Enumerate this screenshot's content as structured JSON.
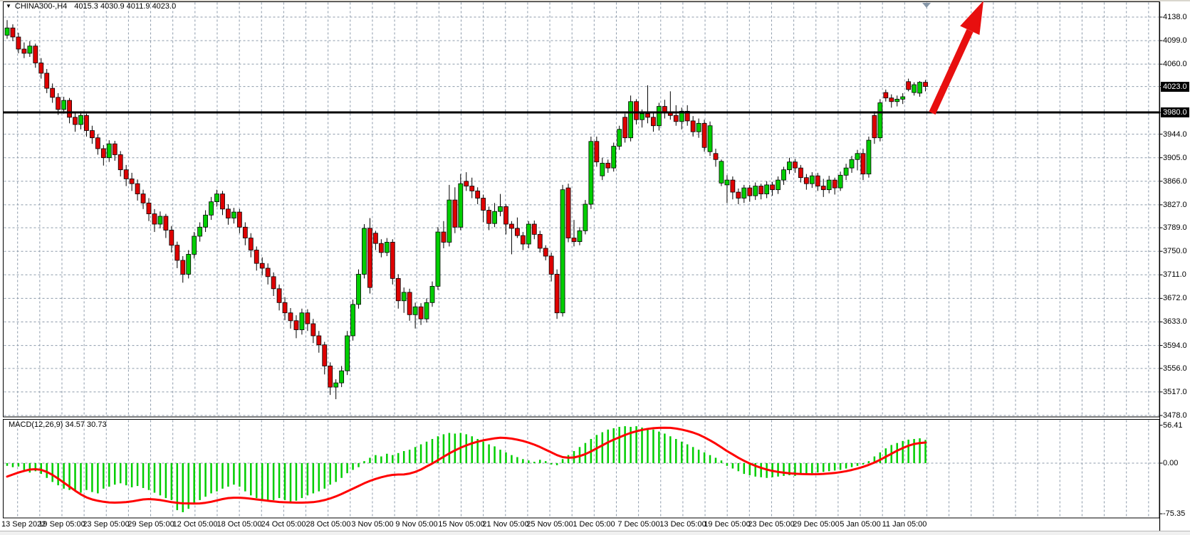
{
  "header": {
    "symbol_period": "CHINA300-,H4",
    "ohlc": "4015.3 4030.9 4011.9 4023.0",
    "dropdown_icon": "▼"
  },
  "macd_panel": {
    "label": "MACD(12,26,9) 34.57 30.73"
  },
  "price_axis": {
    "labels": [
      {
        "text": "4138.0",
        "value": 4138,
        "highlight": false
      },
      {
        "text": "4099.0",
        "value": 4099,
        "highlight": false
      },
      {
        "text": "4060.0",
        "value": 4060,
        "highlight": false
      },
      {
        "text": "4023.0",
        "value": 4023,
        "highlight": true
      },
      {
        "text": "3980.0",
        "value": 3980,
        "highlight": true
      },
      {
        "text": "3944.0",
        "value": 3944,
        "highlight": false
      },
      {
        "text": "3905.0",
        "value": 3905,
        "highlight": false
      },
      {
        "text": "3866.0",
        "value": 3866,
        "highlight": false
      },
      {
        "text": "3827.0",
        "value": 3827,
        "highlight": false
      },
      {
        "text": "3789.0",
        "value": 3789,
        "highlight": false
      },
      {
        "text": "3750.0",
        "value": 3750,
        "highlight": false
      },
      {
        "text": "3711.0",
        "value": 3711,
        "highlight": false
      },
      {
        "text": "3672.0",
        "value": 3672,
        "highlight": false
      },
      {
        "text": "3633.0",
        "value": 3633,
        "highlight": false
      },
      {
        "text": "3594.0",
        "value": 3594,
        "highlight": false
      },
      {
        "text": "3556.0",
        "value": 3556,
        "highlight": false
      },
      {
        "text": "3517.0",
        "value": 3517,
        "highlight": false
      },
      {
        "text": "3478.0",
        "value": 3478,
        "highlight": false
      }
    ]
  },
  "macd_axis": {
    "labels": [
      {
        "text": "56.41",
        "value": 56.41
      },
      {
        "text": "0.00",
        "value": 0
      },
      {
        "text": "-75.35",
        "value": -75.35
      }
    ]
  },
  "time_axis": {
    "labels": [
      "13 Sep 2022",
      "19 Sep 05:00",
      "23 Sep 05:00",
      "29 Sep 05:00",
      "12 Oct 05:00",
      "18 Oct 05:00",
      "24 Oct 05:00",
      "28 Oct 05:00",
      "3 Nov 05:00",
      "9 Nov 05:00",
      "15 Nov 05:00",
      "21 Nov 05:00",
      "25 Nov 05:00",
      "1 Dec 05:00",
      "7 Dec 05:00",
      "13 Dec 05:00",
      "19 Dec 05:00",
      "23 Dec 05:00",
      "29 Dec 05:00",
      "5 Jan 05:00",
      "11 Jan 05:00"
    ]
  },
  "annotations": {
    "horizontal_line_price": 3980.0,
    "current_price": 4023.0,
    "trend_arrow_direction": "up"
  },
  "colors": {
    "bull": "#00CE00",
    "bear": "#DF0000",
    "outline": "#000000",
    "grid": "#8C9AAA",
    "signal_line": "#FF0000",
    "arrow": "#E80F0F",
    "hline": "#000000",
    "shift_marker": "#8696A7"
  },
  "chart_data": {
    "type": "candlestick",
    "symbol": "CHINA300-",
    "timeframe": "H4",
    "title": "CHINA300-,H4",
    "price_axis_range": [
      3478,
      4138
    ],
    "macd_axis_range": [
      -75.35,
      56.41
    ],
    "legend": [
      "MACD histogram",
      "MACD signal"
    ],
    "candles": [
      [
        4108,
        4133,
        4102,
        4120
      ],
      [
        4120,
        4126,
        4098,
        4105
      ],
      [
        4105,
        4112,
        4078,
        4085
      ],
      [
        4085,
        4096,
        4070,
        4078
      ],
      [
        4078,
        4098,
        4072,
        4090
      ],
      [
        4090,
        4094,
        4054,
        4062
      ],
      [
        4062,
        4070,
        4036,
        4045
      ],
      [
        4045,
        4052,
        4012,
        4020
      ],
      [
        4020,
        4028,
        3996,
        4005
      ],
      [
        4005,
        4012,
        3976,
        3985
      ],
      [
        3985,
        4006,
        3978,
        4000
      ],
      [
        4000,
        4004,
        3962,
        3972
      ],
      [
        3972,
        3980,
        3948,
        3960
      ],
      [
        3960,
        3982,
        3952,
        3975
      ],
      [
        3975,
        3978,
        3940,
        3950
      ],
      [
        3950,
        3958,
        3928,
        3938
      ],
      [
        3938,
        3944,
        3910,
        3920
      ],
      [
        3920,
        3926,
        3892,
        3905
      ],
      [
        3905,
        3934,
        3898,
        3928
      ],
      [
        3928,
        3933,
        3900,
        3910
      ],
      [
        3910,
        3916,
        3874,
        3885
      ],
      [
        3885,
        3893,
        3858,
        3870
      ],
      [
        3870,
        3880,
        3850,
        3862
      ],
      [
        3862,
        3869,
        3834,
        3845
      ],
      [
        3845,
        3852,
        3820,
        3830
      ],
      [
        3830,
        3838,
        3800,
        3812
      ],
      [
        3812,
        3820,
        3782,
        3795
      ],
      [
        3795,
        3816,
        3788,
        3808
      ],
      [
        3808,
        3812,
        3772,
        3785
      ],
      [
        3785,
        3792,
        3748,
        3760
      ],
      [
        3760,
        3766,
        3722,
        3735
      ],
      [
        3735,
        3742,
        3698,
        3712
      ],
      [
        3712,
        3752,
        3705,
        3745
      ],
      [
        3745,
        3782,
        3738,
        3775
      ],
      [
        3775,
        3798,
        3766,
        3790
      ],
      [
        3790,
        3818,
        3782,
        3810
      ],
      [
        3810,
        3840,
        3802,
        3832
      ],
      [
        3832,
        3852,
        3824,
        3845
      ],
      [
        3845,
        3850,
        3810,
        3820
      ],
      [
        3820,
        3828,
        3794,
        3805
      ],
      [
        3805,
        3822,
        3796,
        3815
      ],
      [
        3815,
        3820,
        3780,
        3790
      ],
      [
        3790,
        3798,
        3760,
        3772
      ],
      [
        3772,
        3780,
        3740,
        3752
      ],
      [
        3752,
        3758,
        3718,
        3730
      ],
      [
        3730,
        3740,
        3710,
        3722
      ],
      [
        3722,
        3730,
        3695,
        3708
      ],
      [
        3708,
        3715,
        3676,
        3688
      ],
      [
        3688,
        3695,
        3652,
        3665
      ],
      [
        3665,
        3674,
        3636,
        3648
      ],
      [
        3648,
        3656,
        3622,
        3635
      ],
      [
        3635,
        3644,
        3606,
        3620
      ],
      [
        3620,
        3655,
        3612,
        3648
      ],
      [
        3648,
        3654,
        3618,
        3630
      ],
      [
        3630,
        3638,
        3598,
        3610
      ],
      [
        3610,
        3618,
        3582,
        3595
      ],
      [
        3595,
        3600,
        3546,
        3560
      ],
      [
        3560,
        3566,
        3512,
        3525
      ],
      [
        3525,
        3538,
        3505,
        3532
      ],
      [
        3532,
        3560,
        3525,
        3552
      ],
      [
        3552,
        3618,
        3545,
        3610
      ],
      [
        3610,
        3670,
        3602,
        3662
      ],
      [
        3662,
        3720,
        3655,
        3712
      ],
      [
        3712,
        3795,
        3705,
        3788
      ],
      [
        3788,
        3805,
        3680,
        3690
      ],
      [
        3780,
        3784,
        3752,
        3763
      ],
      [
        3763,
        3770,
        3740,
        3748
      ],
      [
        3748,
        3772,
        3742,
        3765
      ],
      [
        3765,
        3770,
        3695,
        3705
      ],
      [
        3705,
        3712,
        3655,
        3668
      ],
      [
        3668,
        3690,
        3648,
        3682
      ],
      [
        3682,
        3688,
        3635,
        3645
      ],
      [
        3645,
        3665,
        3622,
        3658
      ],
      [
        3658,
        3664,
        3628,
        3638
      ],
      [
        3638,
        3672,
        3632,
        3665
      ],
      [
        3665,
        3700,
        3658,
        3692
      ],
      [
        3692,
        3790,
        3686,
        3782
      ],
      [
        3782,
        3800,
        3755,
        3765
      ],
      [
        3765,
        3860,
        3758,
        3835
      ],
      [
        3835,
        3856,
        3780,
        3790
      ],
      [
        3790,
        3878,
        3785,
        3862
      ],
      [
        3866,
        3881,
        3850,
        3858
      ],
      [
        3858,
        3872,
        3838,
        3850
      ],
      [
        3850,
        3856,
        3828,
        3838
      ],
      [
        3838,
        3844,
        3798,
        3818
      ],
      [
        3818,
        3824,
        3785,
        3796
      ],
      [
        3796,
        3830,
        3790,
        3816
      ],
      [
        3816,
        3845,
        3808,
        3824
      ],
      [
        3824,
        3828,
        3778,
        3795
      ],
      [
        3795,
        3800,
        3745,
        3788
      ],
      [
        3788,
        3806,
        3772,
        3776
      ],
      [
        3776,
        3782,
        3752,
        3762
      ],
      [
        3762,
        3800,
        3755,
        3795
      ],
      [
        3795,
        3801,
        3770,
        3778
      ],
      [
        3778,
        3784,
        3748,
        3755
      ],
      [
        3755,
        3760,
        3735,
        3742
      ],
      [
        3742,
        3748,
        3700,
        3712
      ],
      [
        3712,
        3720,
        3638,
        3648
      ],
      [
        3648,
        3860,
        3642,
        3852
      ],
      [
        3855,
        3862,
        3765,
        3772
      ],
      [
        3772,
        3802,
        3758,
        3766
      ],
      [
        3766,
        3790,
        3760,
        3784
      ],
      [
        3784,
        3835,
        3778,
        3828
      ],
      [
        3828,
        3940,
        3820,
        3932
      ],
      [
        3932,
        3940,
        3890,
        3898
      ],
      [
        3875,
        3905,
        3868,
        3896
      ],
      [
        3896,
        3902,
        3880,
        3888
      ],
      [
        3888,
        3930,
        3882,
        3924
      ],
      [
        3924,
        3958,
        3918,
        3952
      ],
      [
        3972,
        3978,
        3930,
        3938
      ],
      [
        3938,
        4008,
        3932,
        3998
      ],
      [
        3998,
        4002,
        3960,
        3968
      ],
      [
        3968,
        3985,
        3955,
        3978
      ],
      [
        3978,
        4025,
        3962,
        3972
      ],
      [
        3972,
        3980,
        3948,
        3958
      ],
      [
        3958,
        3996,
        3950,
        3990
      ],
      [
        3990,
        4001,
        3970,
        3980
      ],
      [
        3980,
        4015,
        3968,
        3975
      ],
      [
        3975,
        3992,
        3958,
        3965
      ],
      [
        3965,
        3988,
        3952,
        3982
      ],
      [
        3982,
        3992,
        3958,
        3966
      ],
      [
        3966,
        3974,
        3940,
        3948
      ],
      [
        3948,
        3970,
        3938,
        3962
      ],
      [
        3962,
        3968,
        3915,
        3922
      ],
      [
        3915,
        3965,
        3908,
        3958
      ],
      [
        3912,
        3920,
        3890,
        3902
      ],
      [
        3863,
        3902,
        3858,
        3899
      ],
      [
        3860,
        3876,
        3830,
        3868
      ],
      [
        3868,
        3874,
        3836,
        3848
      ],
      [
        3848,
        3854,
        3828,
        3838
      ],
      [
        3838,
        3860,
        3830,
        3855
      ],
      [
        3855,
        3860,
        3832,
        3842
      ],
      [
        3842,
        3864,
        3835,
        3858
      ],
      [
        3858,
        3862,
        3836,
        3845
      ],
      [
        3845,
        3866,
        3838,
        3860
      ],
      [
        3860,
        3865,
        3842,
        3852
      ],
      [
        3852,
        3874,
        3845,
        3868
      ],
      [
        3868,
        3890,
        3860,
        3885
      ],
      [
        3885,
        3905,
        3878,
        3898
      ],
      [
        3898,
        3903,
        3880,
        3888
      ],
      [
        3888,
        3893,
        3864,
        3872
      ],
      [
        3872,
        3878,
        3852,
        3862
      ],
      [
        3862,
        3881,
        3855,
        3875
      ],
      [
        3875,
        3880,
        3850,
        3858
      ],
      [
        3858,
        3870,
        3840,
        3852
      ],
      [
        3852,
        3875,
        3846,
        3868
      ],
      [
        3868,
        3872,
        3844,
        3855
      ],
      [
        3855,
        3882,
        3850,
        3876
      ],
      [
        3876,
        3895,
        3868,
        3888
      ],
      [
        3888,
        3908,
        3880,
        3902
      ],
      [
        3902,
        3918,
        3884,
        3912
      ],
      [
        3912,
        3920,
        3868,
        3878
      ],
      [
        3878,
        3940,
        3872,
        3934
      ],
      [
        3975,
        3982,
        3928,
        3938
      ],
      [
        3938,
        4002,
        3932,
        3996
      ],
      [
        4013,
        4018,
        3998,
        4004
      ],
      [
        4004,
        4010,
        3988,
        3998
      ],
      [
        3998,
        4008,
        3990,
        4002
      ],
      [
        4002,
        4012,
        3994,
        4006
      ],
      [
        4031,
        4036,
        4015,
        4018
      ],
      [
        4013,
        4030,
        4008,
        4026
      ],
      [
        4012,
        4032,
        4006,
        4030
      ],
      [
        4030,
        4034,
        4015,
        4023
      ]
    ],
    "macd": {
      "params": "12,26,9",
      "macd_value": 34.57,
      "signal_value": 30.73,
      "histogram": [
        -4,
        -6,
        -5,
        -10,
        -14,
        -12,
        -16,
        -22,
        -28,
        -33,
        -38,
        -40,
        -42,
        -44,
        -40,
        -43,
        -45,
        -38,
        -35,
        -32,
        -30,
        -33,
        -36,
        -34,
        -37,
        -40,
        -44,
        -48,
        -52,
        -55,
        -70,
        -73,
        -68,
        -60,
        -55,
        -50,
        -45,
        -42,
        -38,
        -35,
        -32,
        -35,
        -42,
        -48,
        -52,
        -55,
        -57,
        -55,
        -52,
        -55,
        -58,
        -56,
        -52,
        -48,
        -45,
        -42,
        -38,
        -32,
        -28,
        -22,
        -15,
        -10,
        -6,
        3,
        8,
        12,
        10,
        14,
        12,
        15,
        18,
        20,
        24,
        28,
        32,
        36,
        40,
        43,
        45,
        44,
        45,
        43,
        40,
        36,
        32,
        28,
        25,
        20,
        16,
        12,
        9,
        6,
        4,
        2,
        5,
        3,
        -2,
        -3,
        6,
        12,
        18,
        24,
        30,
        36,
        42,
        46,
        50,
        52,
        54,
        55,
        54,
        55,
        53,
        52,
        50,
        47,
        44,
        40,
        36,
        32,
        28,
        24,
        20,
        16,
        12,
        8,
        4,
        -4,
        -8,
        -12,
        -16,
        -18,
        -20,
        -21,
        -22,
        -21,
        -20,
        -19,
        -18,
        -19,
        -17,
        -16,
        -15,
        -14,
        -13,
        -12,
        -11,
        -10,
        -8,
        -6,
        -4,
        -2,
        3,
        10,
        16,
        22,
        27,
        30,
        33,
        35,
        36,
        37,
        34.57
      ],
      "signal": [
        -20,
        -17,
        -14,
        -11.5,
        -9.5,
        -9,
        -10,
        -13,
        -17.5,
        -23,
        -29,
        -35,
        -41,
        -46.5,
        -51,
        -54,
        -56,
        -57.5,
        -58.5,
        -58.8,
        -58.5,
        -58,
        -57,
        -55.5,
        -54,
        -53.5,
        -54,
        -55,
        -56.5,
        -58,
        -59,
        -59.8,
        -60,
        -60.2,
        -60,
        -59,
        -57.5,
        -55.5,
        -53.5,
        -52,
        -51.5,
        -51.5,
        -52,
        -53,
        -54,
        -55,
        -56,
        -57,
        -57.8,
        -58.3,
        -58.6,
        -58.8,
        -58.8,
        -58.5,
        -58,
        -56.8,
        -55,
        -52.5,
        -49.5,
        -46,
        -42,
        -38,
        -34,
        -30,
        -26.5,
        -23.5,
        -21,
        -19,
        -17.5,
        -17,
        -16.8,
        -15.5,
        -13,
        -9.5,
        -5,
        -0.5,
        4.5,
        9.5,
        14.5,
        19,
        23,
        26.5,
        29.5,
        32,
        34,
        35.5,
        37,
        37.8,
        37.5,
        36.5,
        35,
        33,
        30.5,
        27.5,
        24,
        20,
        16,
        12,
        9,
        8,
        8.5,
        10.5,
        13.5,
        17.5,
        22,
        26.5,
        31,
        35,
        38.5,
        42,
        45,
        47.5,
        49.5,
        51,
        52,
        52.5,
        52.7,
        52.5,
        51.5,
        50,
        48,
        45.5,
        42.5,
        38.5,
        34,
        29,
        23.5,
        18,
        13,
        8,
        3.5,
        -0.5,
        -4,
        -7,
        -9.5,
        -11.5,
        -13,
        -14.2,
        -15.2,
        -15.8,
        -16.2,
        -16.4,
        -16.5,
        -16.4,
        -16,
        -15.4,
        -14.6,
        -13.5,
        -12,
        -10.2,
        -8,
        -5.5,
        -2.5,
        1,
        5,
        9.5,
        14,
        18.5,
        22.5,
        26,
        28.5,
        30,
        30.73
      ]
    }
  }
}
